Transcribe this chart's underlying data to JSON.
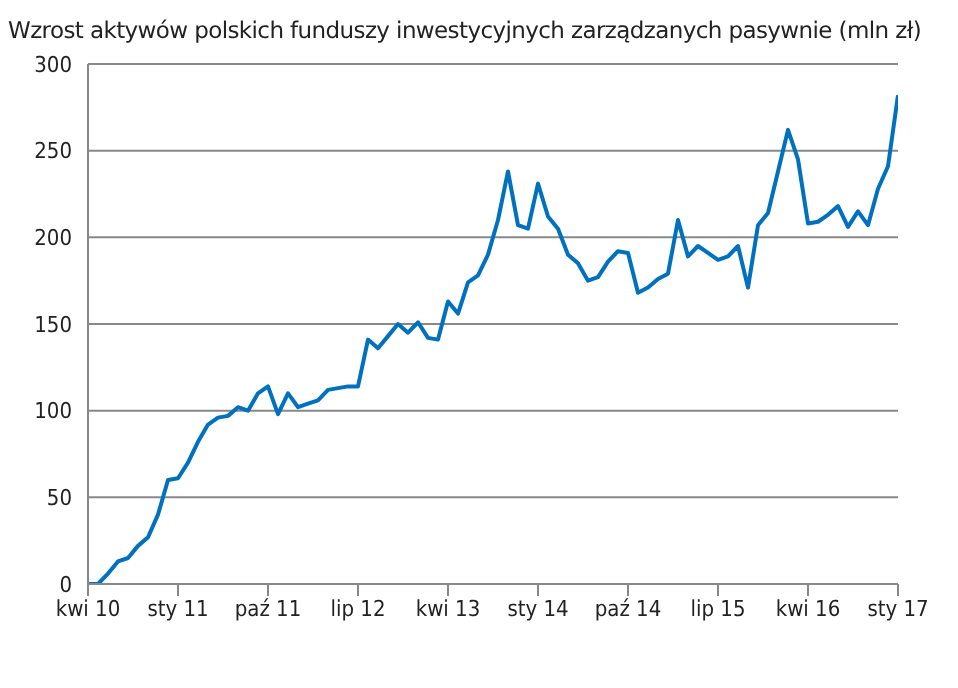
{
  "chart_data": {
    "type": "line",
    "title": "Wzrost aktywów polskich funduszy inwestycyjnych zarządzanych pasywnie (mln zł)",
    "categories": [
      "kwi 10",
      null,
      null,
      null,
      null,
      null,
      null,
      null,
      null,
      "sty 11",
      null,
      null,
      null,
      null,
      null,
      null,
      null,
      null,
      "paź 11",
      null,
      null,
      null,
      null,
      null,
      null,
      null,
      null,
      "lip 12",
      null,
      null,
      null,
      null,
      null,
      null,
      null,
      null,
      "kwi 13",
      null,
      null,
      null,
      null,
      null,
      null,
      null,
      null,
      "sty 14",
      null,
      null,
      null,
      null,
      null,
      null,
      null,
      null,
      "paź 14",
      null,
      null,
      null,
      null,
      null,
      null,
      null,
      null,
      "lip 15",
      null,
      null,
      null,
      null,
      null,
      null,
      null,
      null,
      "kwi 16",
      null,
      null,
      null,
      null,
      null,
      null,
      null,
      null,
      "sty 17"
    ],
    "series": [
      {
        "color": "#0070c0",
        "values": [
          0,
          0,
          6,
          13,
          15,
          22,
          27,
          40,
          60,
          61,
          70,
          82,
          92,
          96,
          97,
          102,
          100,
          110,
          114,
          98,
          110,
          102,
          104,
          106,
          112,
          113,
          114,
          114,
          141,
          136,
          143,
          150,
          145,
          151,
          142,
          141,
          163,
          156,
          174,
          178,
          190,
          210,
          238,
          207,
          205,
          231,
          212,
          205,
          190,
          185,
          175,
          177,
          186,
          192,
          191,
          168,
          171,
          176,
          179,
          210,
          189,
          195,
          191,
          187,
          189,
          195,
          171,
          207,
          214,
          238,
          262,
          245,
          208,
          209,
          213,
          218,
          206,
          215,
          207,
          228,
          241,
          282
        ]
      }
    ],
    "ylim": [
      0,
      300
    ],
    "yticks": [
      0,
      50,
      100,
      150,
      200,
      250,
      300
    ],
    "grid": "y",
    "legend": false,
    "marker": "none",
    "line_style": "solid"
  }
}
